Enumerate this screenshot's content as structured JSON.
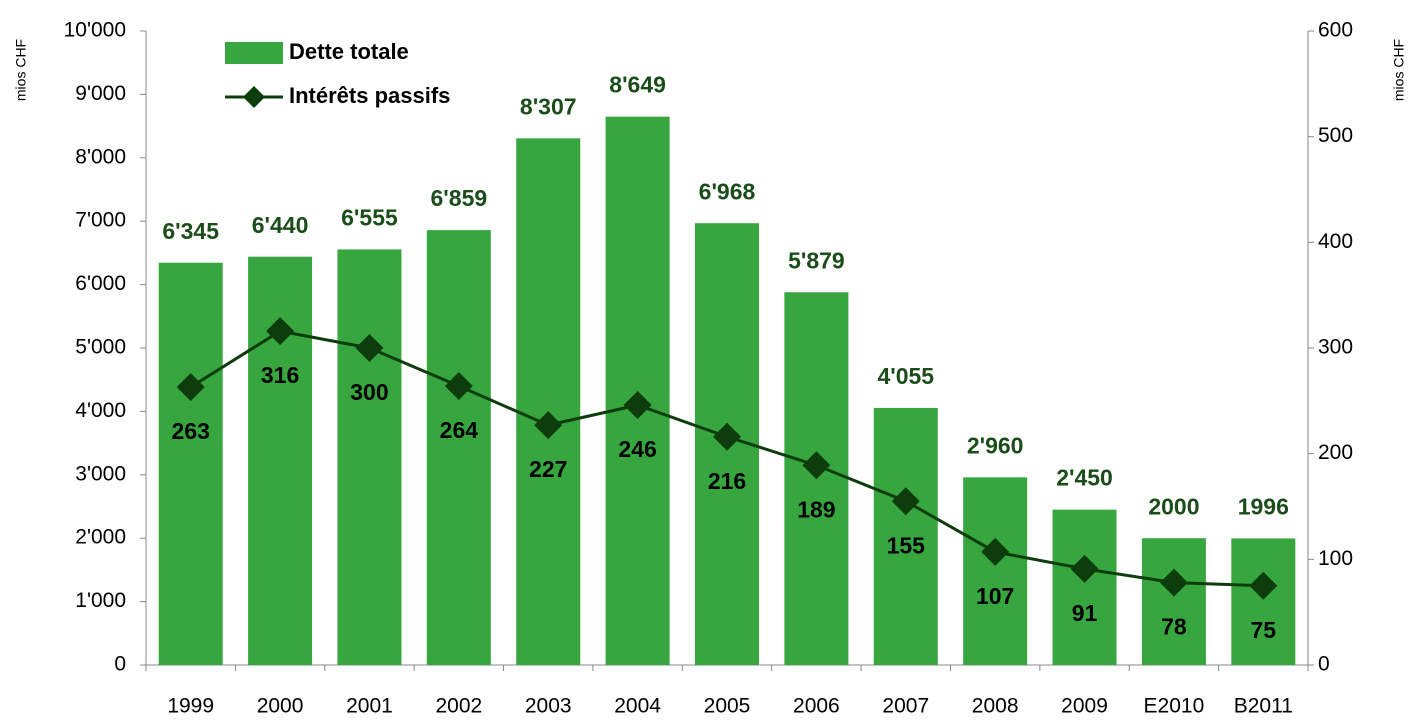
{
  "chart_data": {
    "type": "bar",
    "y_label": "mios CHF",
    "y2_label": "mios CHF",
    "categories": [
      "1999",
      "2000",
      "2001",
      "2002",
      "2003",
      "2004",
      "2005",
      "2006",
      "2007",
      "2008",
      "2009",
      "E2010",
      "B2011"
    ],
    "series": [
      {
        "name": "Dette totale",
        "type": "bar",
        "color": "#37a63e",
        "values": [
          6345,
          6440,
          6555,
          6859,
          8307,
          8649,
          6968,
          5879,
          4055,
          2960,
          2450,
          2000,
          1996
        ],
        "value_labels": [
          "6'345",
          "6'440",
          "6'555",
          "6'859",
          "8'307",
          "8'649",
          "6'968",
          "5'879",
          "4'055",
          "2'960",
          "2'450",
          "2000",
          "1996"
        ]
      },
      {
        "name": "Intérêts passifs",
        "type": "line",
        "axis": "y2",
        "color": "#0d3d0d",
        "values": [
          263,
          316,
          300,
          264,
          227,
          246,
          216,
          189,
          155,
          107,
          91,
          78,
          75
        ]
      }
    ],
    "ylim": [
      0,
      10000
    ],
    "yticks": [
      0,
      {
        "value": 1000,
        "label": "1'000"
      },
      {
        "value": 2000,
        "label": "2'000"
      },
      {
        "value": 3000,
        "label": "3'000"
      },
      {
        "value": 4000,
        "label": "4'000"
      },
      {
        "value": 5000,
        "label": "5'000"
      },
      {
        "value": 6000,
        "label": "6'000"
      },
      {
        "value": 7000,
        "label": "7'000"
      },
      {
        "value": 8000,
        "label": "8'000"
      },
      {
        "value": 9000,
        "label": "9'000"
      },
      {
        "value": 10000,
        "label": "10'000"
      }
    ],
    "y2lim": [
      0,
      600
    ],
    "y2ticks": [
      0,
      100,
      200,
      300,
      400,
      500,
      600
    ],
    "grid": false,
    "legend": "top-left"
  }
}
